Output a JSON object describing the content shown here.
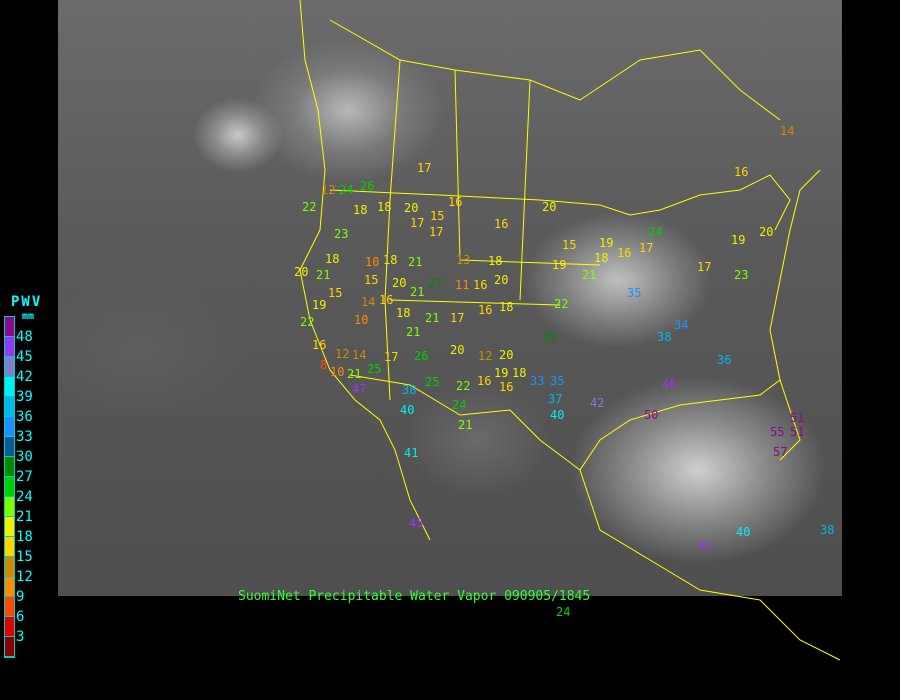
{
  "caption": "SuomiNet Precipitable Water Vapor 090905/1845",
  "legend": {
    "title": "PWV",
    "unit": "mm",
    "colors": [
      "#8b0a8b",
      "#9a35f0",
      "#8080d0",
      "#00f0f0",
      "#00b8e8",
      "#1e90ff",
      "#0a5a96",
      "#008a00",
      "#00d000",
      "#80ff00",
      "#f0f000",
      "#ffd700",
      "#d08a00",
      "#ff8c00",
      "#ff4800",
      "#e00000",
      "#8b0000"
    ],
    "labels": [
      "48",
      "45",
      "42",
      "39",
      "36",
      "33",
      "30",
      "27",
      "24",
      "21",
      "18",
      "15",
      "12",
      "9",
      "6",
      "3"
    ]
  },
  "stations": [
    17,
    16,
    20,
    15,
    17,
    16,
    15,
    20,
    18,
    13,
    19,
    20,
    21,
    18,
    16,
    17,
    22,
    35,
    18,
    16,
    20,
    12,
    20,
    19,
    18,
    16,
    16,
    22,
    24,
    21,
    33,
    35,
    37,
    40,
    42,
    46,
    50,
    55,
    51,
    57,
    51,
    36,
    34,
    38,
    41,
    45,
    40,
    38,
    45,
    14,
    16,
    20,
    19,
    17,
    23,
    19,
    24,
    29,
    20,
    21,
    19,
    22,
    16,
    8,
    12,
    10,
    14,
    10,
    14,
    16,
    18,
    21,
    17,
    26,
    25,
    38,
    40,
    21,
    47,
    25,
    15,
    15,
    18,
    10,
    18,
    21,
    27,
    21,
    20,
    17,
    21,
    11,
    16,
    22,
    23,
    18,
    18,
    17,
    24,
    26,
    12,
    24
  ]
}
